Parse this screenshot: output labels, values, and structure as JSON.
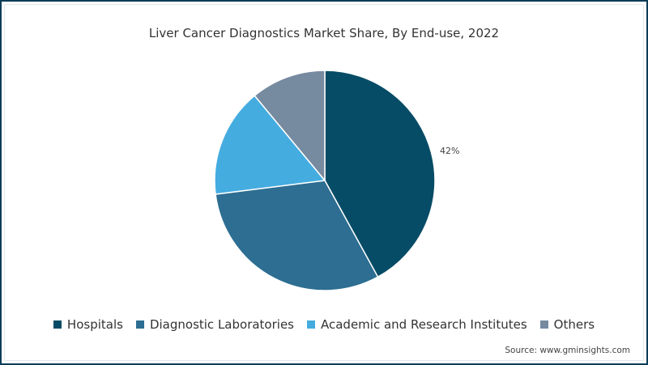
{
  "chart_data": {
    "type": "pie",
    "title": "Liver Cancer Diagnostics Market Share, By End-use, 2022",
    "categories": [
      "Hospitals",
      "Diagnostic Laboratories",
      "Academic and Research Institutes",
      "Others"
    ],
    "values": [
      42,
      31,
      16,
      11
    ],
    "colors": [
      "#074c66",
      "#2d6e92",
      "#45ace0",
      "#768aa0"
    ],
    "data_labels": [
      {
        "category": "Hospitals",
        "text": "42%"
      }
    ],
    "legend_position": "bottom",
    "start_angle": "12 o'clock, clockwise"
  },
  "title": "Liver Cancer Diagnostics Market Share, By End-use, 2022",
  "slice_label": "42%",
  "legend": [
    {
      "label": "Hospitals",
      "color": "#074c66"
    },
    {
      "label": "Diagnostic Laboratories",
      "color": "#2d6e92"
    },
    {
      "label": "Academic and Research Institutes",
      "color": "#45ace0"
    },
    {
      "label": "Others",
      "color": "#768aa0"
    }
  ],
  "source": "Source: www.gminsights.com"
}
